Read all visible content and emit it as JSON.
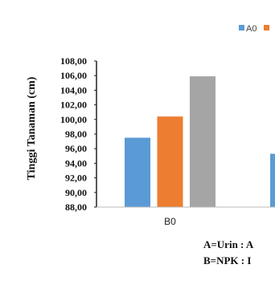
{
  "chart_data": {
    "type": "bar",
    "ylabel": "Tinggi Tanaman (cm)",
    "ylim": [
      88,
      108
    ],
    "y_ticks": [
      "88,00",
      "90,00",
      "92,00",
      "94,00",
      "96,00",
      "98,00",
      "100,00",
      "102,00",
      "104,00",
      "106,00",
      "108,00"
    ],
    "categories": [
      "B0",
      ""
    ],
    "series": [
      {
        "name": "A0",
        "color": "#5b9bd5",
        "values": [
          97.5,
          95.3
        ]
      },
      {
        "name": "",
        "color": "#ed7d31",
        "values": [
          100.4,
          null
        ]
      },
      {
        "name": "",
        "color": "#a5a5a5",
        "values": [
          105.9,
          null
        ]
      }
    ],
    "legend_position": "top-right",
    "grid": false
  },
  "notes": {
    "line1": "A=Urin : A",
    "line2": "B=NPK : I"
  }
}
